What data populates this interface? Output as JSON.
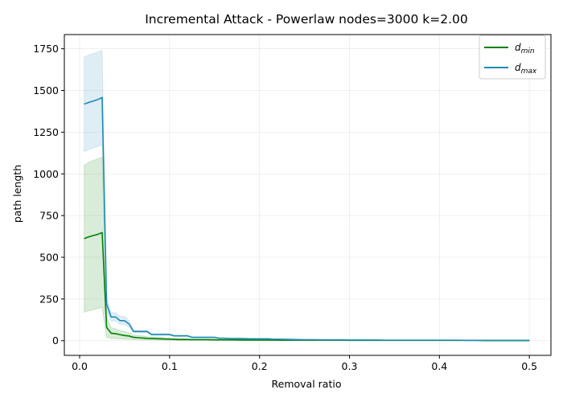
{
  "chart_data": {
    "type": "line",
    "title": "Incremental Attack - Powerlaw nodes=3000 k=2.00",
    "xlabel": "Removal ratio",
    "ylabel": "path length",
    "xlim": [
      -0.017,
      0.524
    ],
    "ylim": [
      -88,
      1835
    ],
    "xticks": [
      0.0,
      0.1,
      0.2,
      0.3,
      0.4,
      0.5
    ],
    "xtick_labels": [
      "0.0",
      "0.1",
      "0.2",
      "0.3",
      "0.4",
      "0.5"
    ],
    "yticks": [
      0,
      250,
      500,
      750,
      1000,
      1250,
      1500,
      1750
    ],
    "ytick_labels": [
      "0",
      "250",
      "500",
      "750",
      "1000",
      "1250",
      "1500",
      "1750"
    ],
    "grid": true,
    "legend_position": "top-right",
    "x": [
      0.005,
      0.01,
      0.015,
      0.02,
      0.025,
      0.03,
      0.035,
      0.04,
      0.045,
      0.05,
      0.055,
      0.06,
      0.065,
      0.07,
      0.075,
      0.08,
      0.09,
      0.1,
      0.105,
      0.11,
      0.12,
      0.125,
      0.13,
      0.14,
      0.15,
      0.155,
      0.16,
      0.17,
      0.18,
      0.19,
      0.2,
      0.21,
      0.215,
      0.22,
      0.23,
      0.24,
      0.25,
      0.26,
      0.27,
      0.28,
      0.29,
      0.3,
      0.31,
      0.32,
      0.33,
      0.34,
      0.35,
      0.36,
      0.37,
      0.38,
      0.39,
      0.4,
      0.41,
      0.42,
      0.43,
      0.44,
      0.45,
      0.46,
      0.47,
      0.48,
      0.49,
      0.5
    ],
    "series": [
      {
        "name": "d",
        "name_sub": "min",
        "color": "#008000",
        "values": [
          612,
          622,
          630,
          637,
          648,
          80,
          45,
          42,
          36,
          31,
          28,
          20,
          18,
          16,
          14,
          13,
          11,
          9,
          8,
          7,
          7,
          6,
          6,
          6,
          5,
          5,
          5,
          5,
          4,
          4,
          4,
          4,
          4,
          3,
          3,
          3,
          3,
          3,
          3,
          3,
          3,
          2,
          2,
          2,
          2,
          2,
          2,
          2,
          2,
          2,
          2,
          2,
          2,
          2,
          2,
          2,
          1,
          1,
          1,
          1,
          1,
          1
        ],
        "lower": [
          170,
          178,
          185,
          192,
          200,
          20,
          13,
          12,
          10,
          9,
          8,
          6,
          5,
          5,
          4,
          4,
          3,
          3,
          3,
          2,
          2,
          2,
          2,
          2,
          2,
          2,
          2,
          2,
          1,
          1,
          1,
          1,
          1,
          1,
          1,
          1,
          1,
          1,
          1,
          1,
          1,
          1,
          1,
          1,
          1,
          1,
          1,
          1,
          1,
          1,
          1,
          1,
          1,
          1,
          1,
          1,
          1,
          1,
          1,
          1,
          1,
          1
        ],
        "upper": [
          1052,
          1068,
          1080,
          1090,
          1100,
          140,
          78,
          72,
          62,
          54,
          48,
          34,
          31,
          28,
          24,
          22,
          19,
          16,
          14,
          12,
          12,
          10,
          10,
          10,
          9,
          9,
          8,
          8,
          7,
          7,
          7,
          7,
          7,
          5,
          5,
          5,
          5,
          5,
          5,
          5,
          5,
          4,
          4,
          4,
          4,
          4,
          4,
          4,
          4,
          4,
          4,
          4,
          4,
          4,
          4,
          4,
          2,
          2,
          2,
          2,
          2,
          2
        ]
      },
      {
        "name": "d",
        "name_sub": "max",
        "color": "#1f8ab5",
        "values": [
          1418,
          1428,
          1436,
          1445,
          1458,
          220,
          142,
          142,
          120,
          120,
          100,
          55,
          55,
          55,
          55,
          37,
          37,
          37,
          29,
          29,
          29,
          20,
          20,
          20,
          20,
          15,
          15,
          13,
          13,
          11,
          11,
          11,
          9,
          9,
          8,
          7,
          6,
          6,
          5,
          5,
          5,
          4,
          4,
          4,
          4,
          3,
          3,
          3,
          3,
          3,
          3,
          3,
          3,
          3,
          2,
          2,
          2,
          2,
          2,
          2,
          2,
          2
        ],
        "lower": [
          1135,
          1145,
          1155,
          1165,
          1175,
          180,
          118,
          118,
          98,
          98,
          82,
          48,
          48,
          48,
          48,
          32,
          32,
          32,
          25,
          25,
          25,
          17,
          17,
          17,
          17,
          13,
          13,
          11,
          11,
          9,
          9,
          9,
          8,
          8,
          7,
          6,
          5,
          5,
          4,
          4,
          4,
          3,
          3,
          3,
          3,
          2,
          2,
          2,
          2,
          2,
          2,
          2,
          2,
          2,
          1,
          1,
          1,
          1,
          1,
          1,
          1,
          1
        ],
        "upper": [
          1700,
          1712,
          1722,
          1730,
          1740,
          260,
          168,
          168,
          145,
          145,
          120,
          62,
          62,
          62,
          62,
          42,
          42,
          42,
          33,
          33,
          33,
          23,
          23,
          23,
          23,
          17,
          17,
          15,
          15,
          13,
          13,
          13,
          10,
          10,
          9,
          8,
          7,
          7,
          6,
          6,
          6,
          5,
          5,
          5,
          5,
          4,
          4,
          4,
          4,
          4,
          4,
          4,
          4,
          4,
          3,
          3,
          3,
          3,
          3,
          3,
          3,
          3
        ]
      }
    ]
  }
}
